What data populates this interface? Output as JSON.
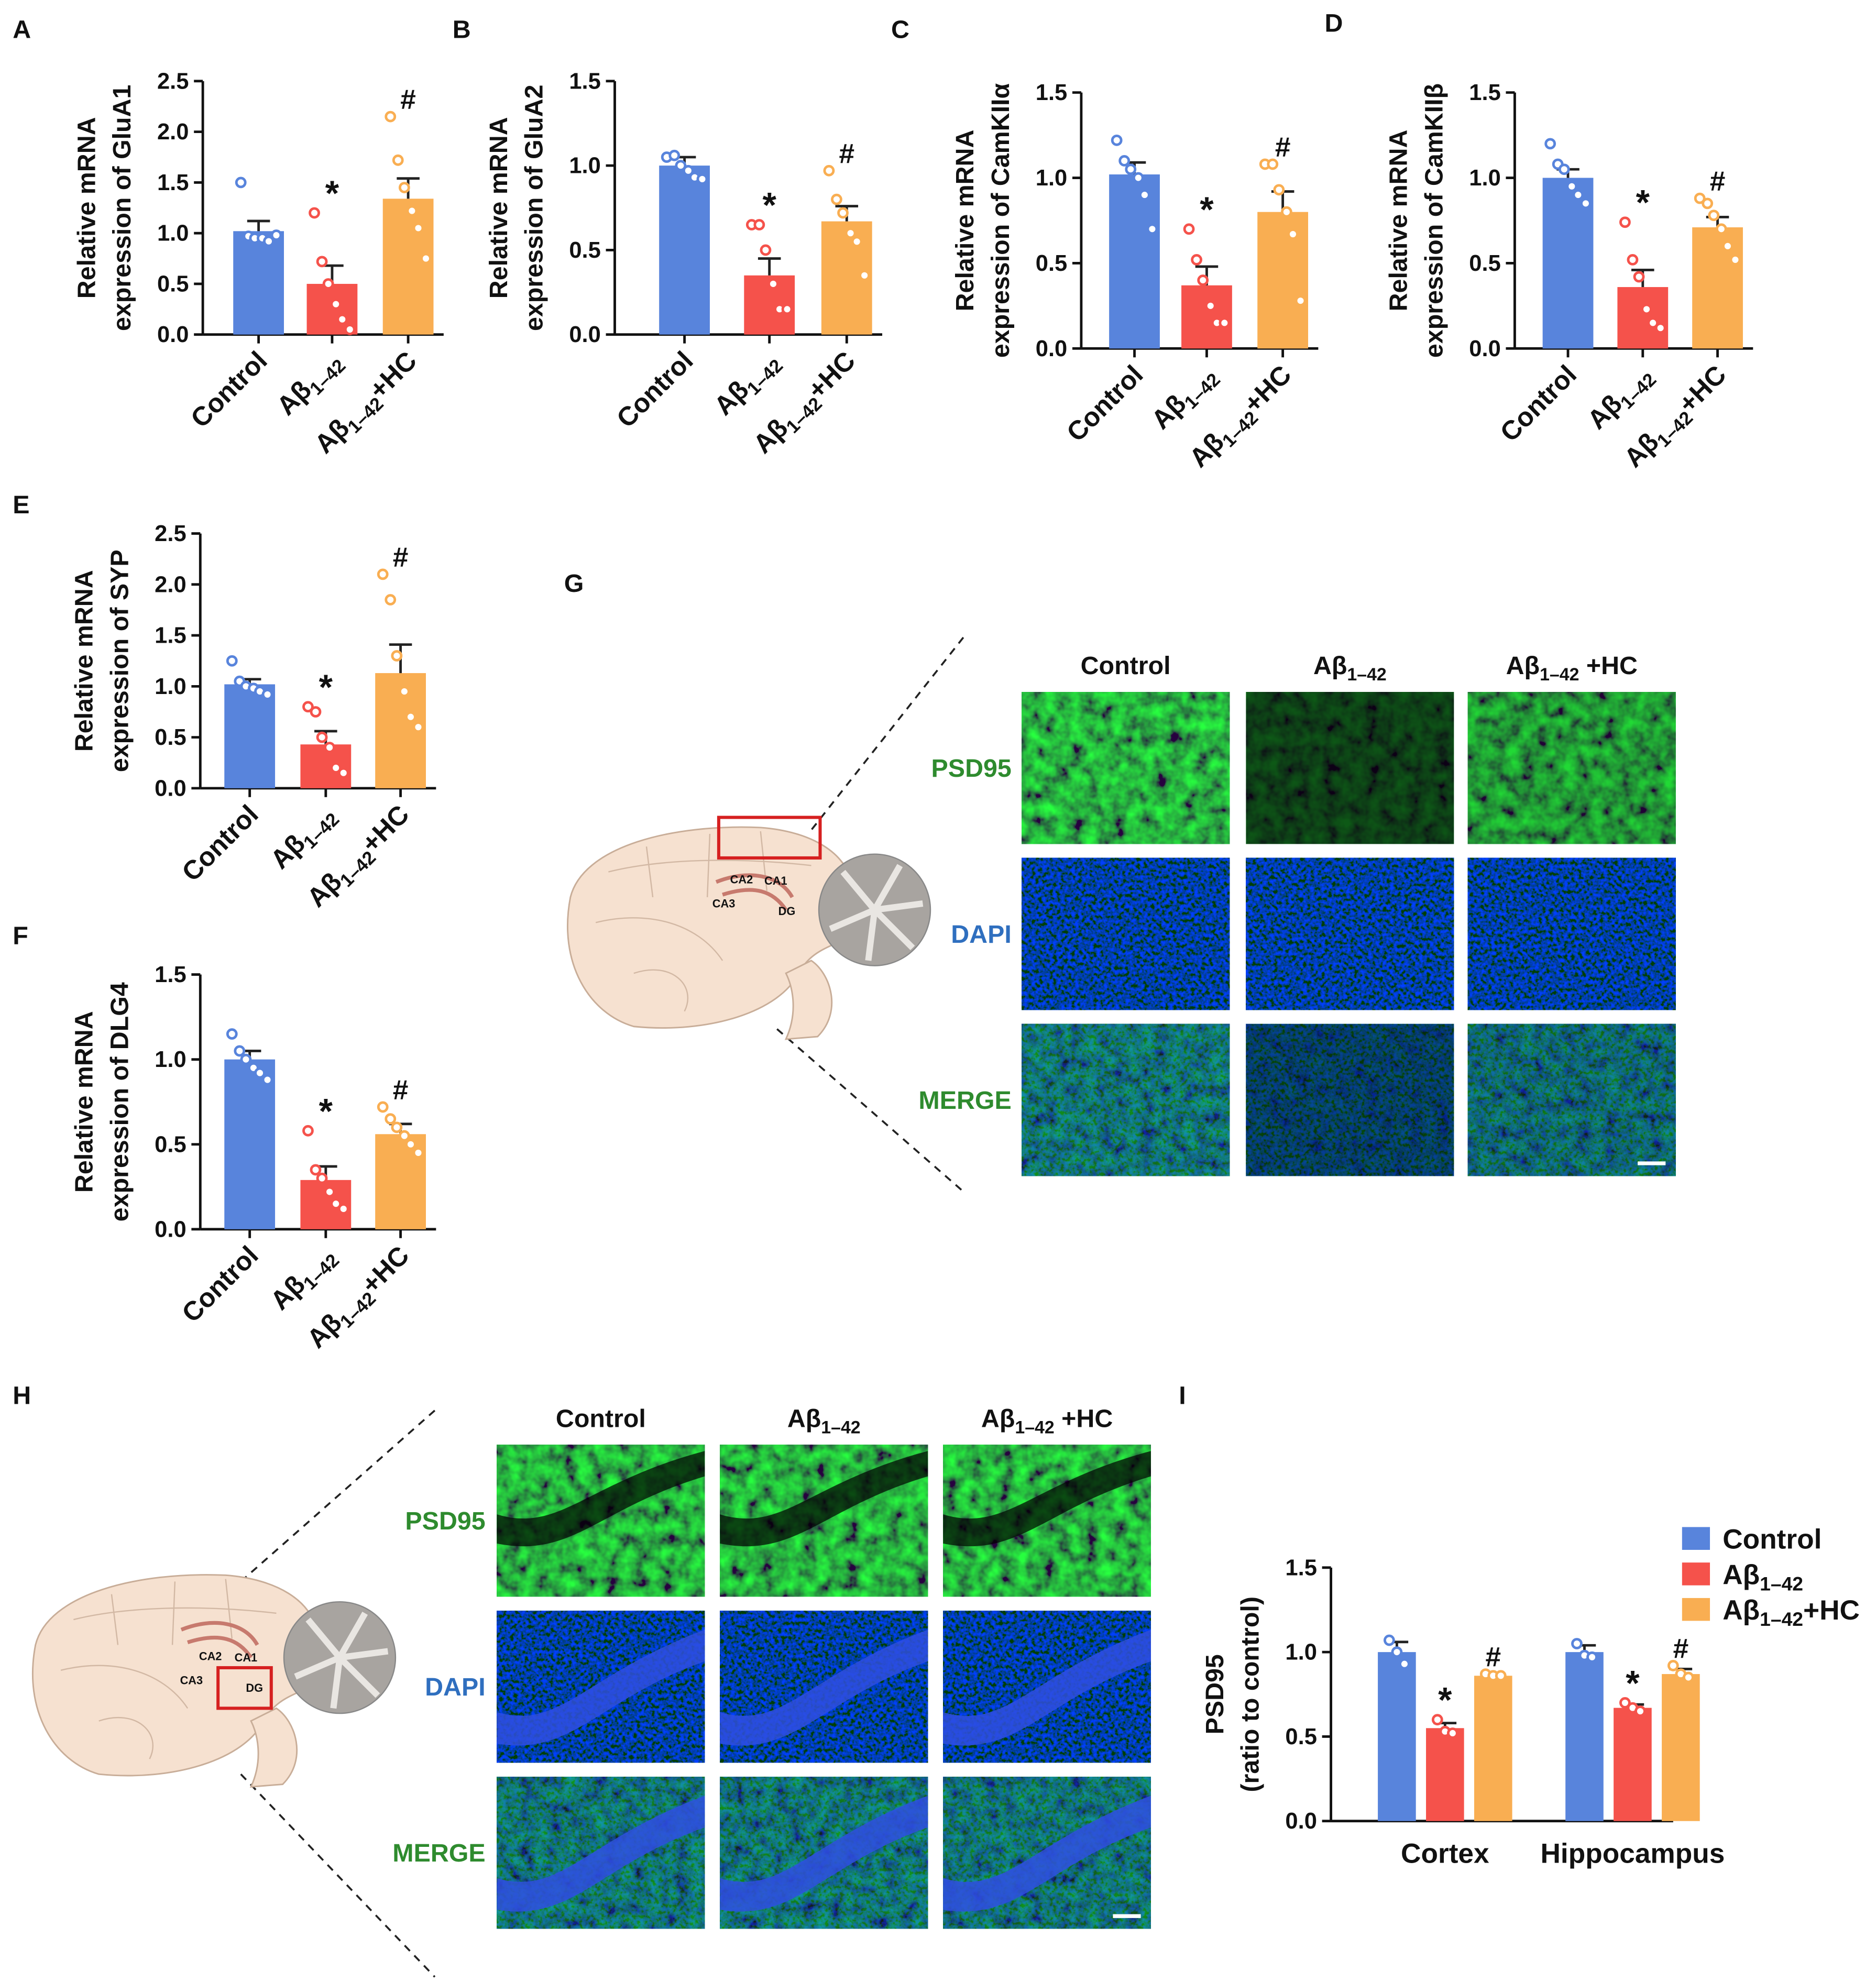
{
  "chart_data": [
    {
      "type": "bar",
      "label": "A",
      "ylabel": [
        "Relative mRNA",
        "expression of GluA1"
      ],
      "categories": [
        "Control",
        "Aβ1–42",
        "Aβ1–42+HC"
      ],
      "colors": [
        "#5884dc",
        "#f5524b",
        "#f9ae52"
      ],
      "values": [
        1.02,
        0.5,
        1.34
      ],
      "errors": [
        0.1,
        0.18,
        0.2
      ],
      "points": [
        [
          1.5,
          0.97,
          0.95,
          0.95,
          0.92,
          0.98
        ],
        [
          1.2,
          0.72,
          0.5,
          0.3,
          0.15,
          0.05
        ],
        [
          2.15,
          1.72,
          1.45,
          1.22,
          1.05,
          0.75
        ]
      ],
      "annotations": [
        null,
        "*",
        "#"
      ],
      "ylim": [
        0,
        2.5
      ],
      "yticks": [
        {
          "value": 0,
          "label": "0.0"
        },
        0.5,
        {
          "value": 1,
          "label": "1.0"
        },
        1.5,
        {
          "value": 2,
          "label": "2.0"
        },
        2.5
      ]
    },
    {
      "type": "bar",
      "label": "B",
      "ylabel": [
        "Relative mRNA",
        "expression of GluA2"
      ],
      "categories": [
        "Control",
        "Aβ1–42",
        "Aβ1–42+HC"
      ],
      "colors": [
        "#5884dc",
        "#f5524b",
        "#f9ae52"
      ],
      "values": [
        1.0,
        0.35,
        0.67
      ],
      "errors": [
        0.05,
        0.1,
        0.09
      ],
      "points": [
        [
          1.05,
          1.06,
          1.0,
          0.97,
          0.93,
          0.92
        ],
        [
          0.65,
          0.65,
          0.5,
          0.3,
          0.15,
          0.15
        ],
        [
          0.97,
          0.8,
          0.72,
          0.6,
          0.55,
          0.35
        ]
      ],
      "annotations": [
        null,
        "*",
        "#"
      ],
      "ylim": [
        0,
        1.5
      ],
      "yticks": [
        {
          "value": 0,
          "label": "0.0"
        },
        0.5,
        {
          "value": 1,
          "label": "1.0"
        },
        1.5
      ]
    },
    {
      "type": "bar",
      "label": "C",
      "ylabel": [
        "Relative mRNA",
        "expression of CamKIIα"
      ],
      "categories": [
        "Control",
        "Aβ1–42",
        "Aβ1–42+HC"
      ],
      "colors": [
        "#5884dc",
        "#f5524b",
        "#f9ae52"
      ],
      "values": [
        1.02,
        0.37,
        0.8
      ],
      "errors": [
        0.07,
        0.11,
        0.12
      ],
      "points": [
        [
          1.22,
          1.1,
          1.05,
          1.0,
          0.9,
          0.7
        ],
        [
          0.7,
          0.52,
          0.4,
          0.25,
          0.15,
          0.15
        ],
        [
          1.08,
          1.08,
          0.93,
          0.8,
          0.67,
          0.28
        ]
      ],
      "annotations": [
        null,
        "*",
        "#"
      ],
      "ylim": [
        0,
        1.5
      ],
      "yticks": [
        {
          "value": 0,
          "label": "0.0"
        },
        0.5,
        {
          "value": 1,
          "label": "1.0"
        },
        1.5
      ]
    },
    {
      "type": "bar",
      "label": "D",
      "ylabel": [
        "Relative mRNA",
        "expression of CamKIIβ"
      ],
      "categories": [
        "Control",
        "Aβ1–42",
        "Aβ1–42+HC"
      ],
      "colors": [
        "#5884dc",
        "#f5524b",
        "#f9ae52"
      ],
      "values": [
        1.0,
        0.36,
        0.71
      ],
      "errors": [
        0.05,
        0.1,
        0.06
      ],
      "points": [
        [
          1.2,
          1.08,
          1.05,
          0.95,
          0.9,
          0.85
        ],
        [
          0.74,
          0.52,
          0.42,
          0.23,
          0.15,
          0.12
        ],
        [
          0.88,
          0.85,
          0.78,
          0.7,
          0.6,
          0.52
        ]
      ],
      "annotations": [
        null,
        "*",
        "#"
      ],
      "ylim": [
        0,
        1.5
      ],
      "yticks": [
        {
          "value": 0,
          "label": "0.0"
        },
        0.5,
        {
          "value": 1,
          "label": "1.0"
        },
        1.5
      ]
    },
    {
      "type": "bar",
      "label": "E",
      "ylabel": [
        "Relative mRNA",
        "expression of SYP"
      ],
      "categories": [
        "Control",
        "Aβ1–42",
        "Aβ1–42+HC"
      ],
      "colors": [
        "#5884dc",
        "#f5524b",
        "#f9ae52"
      ],
      "values": [
        1.02,
        0.43,
        1.13
      ],
      "errors": [
        0.05,
        0.13,
        0.28
      ],
      "points": [
        [
          1.25,
          1.05,
          1.0,
          0.98,
          0.95,
          0.92
        ],
        [
          0.8,
          0.75,
          0.5,
          0.4,
          0.2,
          0.15
        ],
        [
          2.1,
          1.85,
          1.3,
          0.95,
          0.7,
          0.6
        ]
      ],
      "annotations": [
        null,
        "*",
        "#"
      ],
      "ylim": [
        0,
        2.5
      ],
      "yticks": [
        {
          "value": 0,
          "label": "0.0"
        },
        0.5,
        {
          "value": 1,
          "label": "1.0"
        },
        1.5,
        {
          "value": 2,
          "label": "2.0"
        },
        2.5
      ]
    },
    {
      "type": "bar",
      "label": "F",
      "ylabel": [
        "Relative mRNA",
        "expression of DLG4"
      ],
      "categories": [
        "Control",
        "Aβ1–42",
        "Aβ1–42+HC"
      ],
      "colors": [
        "#5884dc",
        "#f5524b",
        "#f9ae52"
      ],
      "values": [
        1.0,
        0.29,
        0.56
      ],
      "errors": [
        0.05,
        0.08,
        0.06
      ],
      "points": [
        [
          1.15,
          1.05,
          1.0,
          0.95,
          0.92,
          0.88
        ],
        [
          0.58,
          0.35,
          0.3,
          0.22,
          0.15,
          0.12
        ],
        [
          0.72,
          0.65,
          0.6,
          0.55,
          0.5,
          0.45
        ]
      ],
      "annotations": [
        null,
        "*",
        "#"
      ],
      "ylim": [
        0,
        1.5
      ],
      "yticks": [
        {
          "value": 0,
          "label": "0.0"
        },
        0.5,
        {
          "value": 1,
          "label": "1.0"
        },
        1.5
      ]
    },
    {
      "type": "grouped_bar",
      "label": "I",
      "ylabel": [
        "PSD95",
        "(ratio to control)"
      ],
      "categories": [
        "Cortex",
        "Hippocampus"
      ],
      "series": [
        {
          "name": "Control",
          "color": "#5884dc",
          "values": [
            1.0,
            1.0
          ],
          "errors": [
            0.06,
            0.04
          ],
          "points": [
            [
              1.07,
              1.0,
              0.93
            ],
            [
              1.05,
              0.98,
              0.97
            ]
          ],
          "annotations": [
            null,
            null
          ]
        },
        {
          "name": "Aβ1–42",
          "color": "#f5524b",
          "values": [
            0.55,
            0.67
          ],
          "errors": [
            0.03,
            0.02
          ],
          "points": [
            [
              0.6,
              0.53,
              0.52
            ],
            [
              0.7,
              0.67,
              0.65
            ]
          ],
          "annotations": [
            "*",
            "*"
          ]
        },
        {
          "name": "Aβ1–42+HC",
          "color": "#f9ae52",
          "values": [
            0.86,
            0.87
          ],
          "errors": [
            0.01,
            0.03
          ],
          "points": [
            [
              0.87,
              0.86,
              0.86
            ],
            [
              0.92,
              0.87,
              0.85
            ]
          ],
          "annotations": [
            "#",
            "#"
          ]
        }
      ],
      "legend": "top-right",
      "ylim": [
        0,
        1.5
      ],
      "yticks": [
        {
          "value": 0,
          "label": "0.0"
        },
        0.5,
        {
          "value": 1,
          "label": "1.0"
        },
        1.5
      ]
    }
  ],
  "image_panels": [
    {
      "label": "G",
      "columns": [
        "Control",
        "Aβ1–42",
        "Aβ1–42 +HC"
      ],
      "rows": [
        "PSD95",
        "DAPI",
        "MERGE"
      ],
      "regions": [
        "CA2",
        "CA1",
        "CA3",
        "DG"
      ]
    },
    {
      "label": "H",
      "columns": [
        "Control",
        "Aβ1–42",
        "Aβ1–42 +HC"
      ],
      "rows": [
        "PSD95",
        "DAPI",
        "MERGE"
      ],
      "regions": [
        "CA2",
        "CA1",
        "CA3",
        "DG"
      ]
    }
  ]
}
